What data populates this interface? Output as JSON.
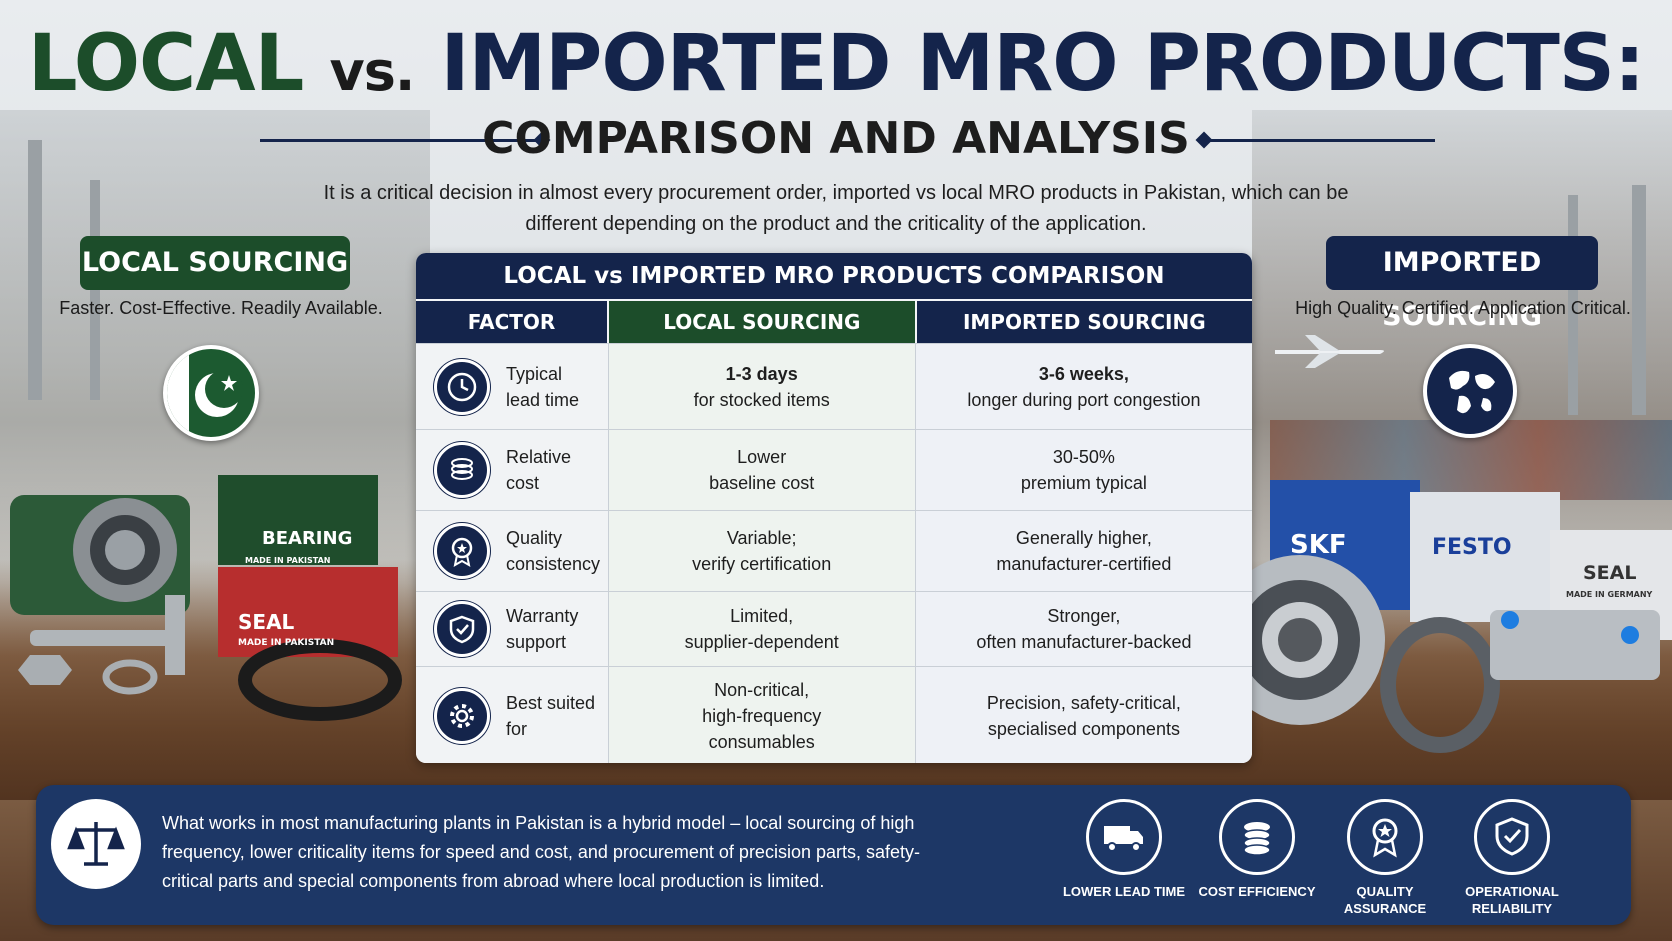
{
  "title": {
    "part1": "LOCAL",
    "vs": "vs.",
    "part2": "IMPORTED MRO PRODUCTS:"
  },
  "subtitle": "COMPARISON AND ANALYSIS",
  "intro": "It is a critical decision in almost every procurement order, imported vs local MRO products in Pakistan, which can be different depending on the product and the criticality of the application.",
  "local_side": {
    "badge": "LOCAL SOURCING",
    "tagline": "Faster. Cost-Effective. Readily Available.",
    "products": {
      "box1_brand": "BEARING",
      "box1_origin": "MADE IN PAKISTAN",
      "box2_brand": "SEAL",
      "box2_origin": "MADE IN PAKISTAN"
    },
    "icon": "pakistan-flag-icon"
  },
  "imported_side": {
    "badge": "IMPORTED SOURCING",
    "tagline": "High Quality. Certified. Application Critical.",
    "products": {
      "brand1": "SKF",
      "brand2": "FESTO",
      "brand3": "SEAL",
      "brand3_origin": "MADE IN GERMANY"
    },
    "icon": "globe-icon"
  },
  "table": {
    "title": "LOCAL vs IMPORTED MRO PRODUCTS COMPARISON",
    "headers": [
      "FACTOR",
      "LOCAL SOURCING",
      "IMPORTED SOURCING"
    ],
    "rows": [
      {
        "icon": "clock-icon",
        "factor": [
          "Typical",
          "lead time"
        ],
        "local_bold": "1-3 days",
        "local": "for stocked items",
        "imported_bold": "3-6 weeks,",
        "imported": "longer during port congestion"
      },
      {
        "icon": "coins-icon",
        "factor": [
          "Relative",
          "cost"
        ],
        "local_bold": "",
        "local": "Lower\nbaseline cost",
        "imported_bold": "",
        "imported": "30-50%\npremium typical"
      },
      {
        "icon": "quality-badge-icon",
        "factor": [
          "Quality",
          "consistency"
        ],
        "local_bold": "",
        "local": "Variable;\nverify certification",
        "imported_bold": "",
        "imported": "Generally higher,\nmanufacturer-certified"
      },
      {
        "icon": "shield-check-icon",
        "factor": [
          "Warranty",
          "support"
        ],
        "local_bold": "",
        "local": "Limited,\nsupplier-dependent",
        "imported_bold": "",
        "imported": "Stronger,\noften manufacturer-backed"
      },
      {
        "icon": "gear-icon",
        "factor": [
          "Best suited",
          "for"
        ],
        "local_bold": "",
        "local": "Non-critical,\nhigh-frequency\nconsumables",
        "imported_bold": "",
        "imported": "Precision, safety-critical,\nspecialised components"
      }
    ]
  },
  "banner": {
    "text": "What works in most manufacturing plants in Pakistan is a hybrid model – local sourcing of high frequency, lower criticality items for speed and cost, and procurement of precision parts, safety-critical parts and special components from abroad where local production is limited.",
    "icons": [
      {
        "icon": "truck-icon",
        "label": "LOWER LEAD TIME"
      },
      {
        "icon": "coins-icon",
        "label": "COST EFFICIENCY"
      },
      {
        "icon": "quality-badge-icon",
        "label": "QUALITY\nASSURANCE"
      },
      {
        "icon": "shield-check-icon",
        "label": "OPERATIONAL\nRELIABILITY"
      }
    ]
  },
  "colors": {
    "navy": "#14244b",
    "green": "#1c4d2a",
    "banner": "#1d3766"
  }
}
